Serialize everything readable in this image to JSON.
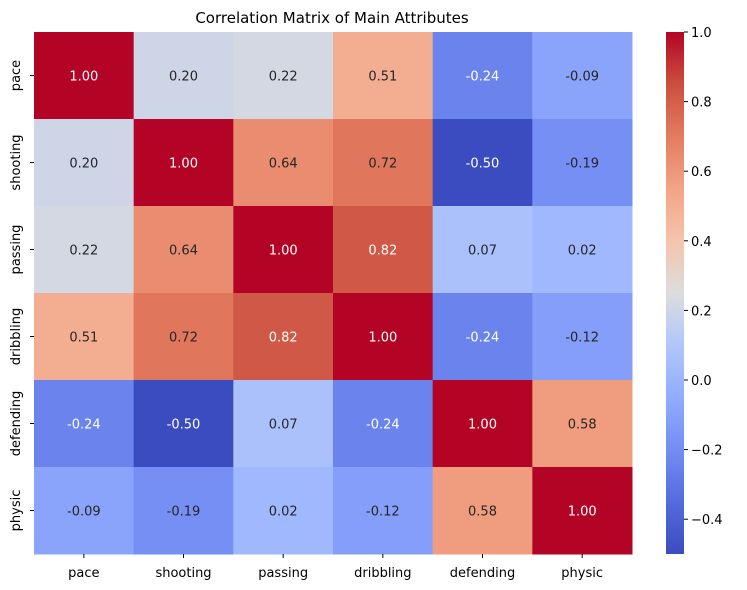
{
  "chart_data": {
    "type": "heatmap",
    "title": "Correlation Matrix of Main Attributes",
    "xlabel": "",
    "ylabel": "",
    "x_categories": [
      "pace",
      "shooting",
      "passing",
      "dribbling",
      "defending",
      "physic"
    ],
    "y_categories": [
      "pace",
      "shooting",
      "passing",
      "dribbling",
      "defending",
      "physic"
    ],
    "values": [
      [
        1.0,
        0.2,
        0.22,
        0.51,
        -0.24,
        -0.09
      ],
      [
        0.2,
        1.0,
        0.64,
        0.72,
        -0.5,
        -0.19
      ],
      [
        0.22,
        0.64,
        1.0,
        0.82,
        0.07,
        0.02
      ],
      [
        0.51,
        0.72,
        0.82,
        1.0,
        -0.24,
        -0.12
      ],
      [
        -0.24,
        -0.5,
        0.07,
        -0.24,
        1.0,
        0.58
      ],
      [
        -0.09,
        -0.19,
        0.02,
        -0.12,
        0.58,
        1.0
      ]
    ],
    "value_format": "0.00",
    "colormap": "coolwarm",
    "vmin": -0.5,
    "vmax": 1.0,
    "colorbar_ticks": [
      -0.4,
      -0.2,
      0.0,
      0.2,
      0.4,
      0.6,
      0.8,
      1.0
    ],
    "colorbar_tick_labels": [
      "−0.4",
      "−0.2",
      "0.0",
      "0.2",
      "0.4",
      "0.6",
      "0.8",
      "1.0"
    ],
    "grid": false,
    "colorbar": "right"
  }
}
